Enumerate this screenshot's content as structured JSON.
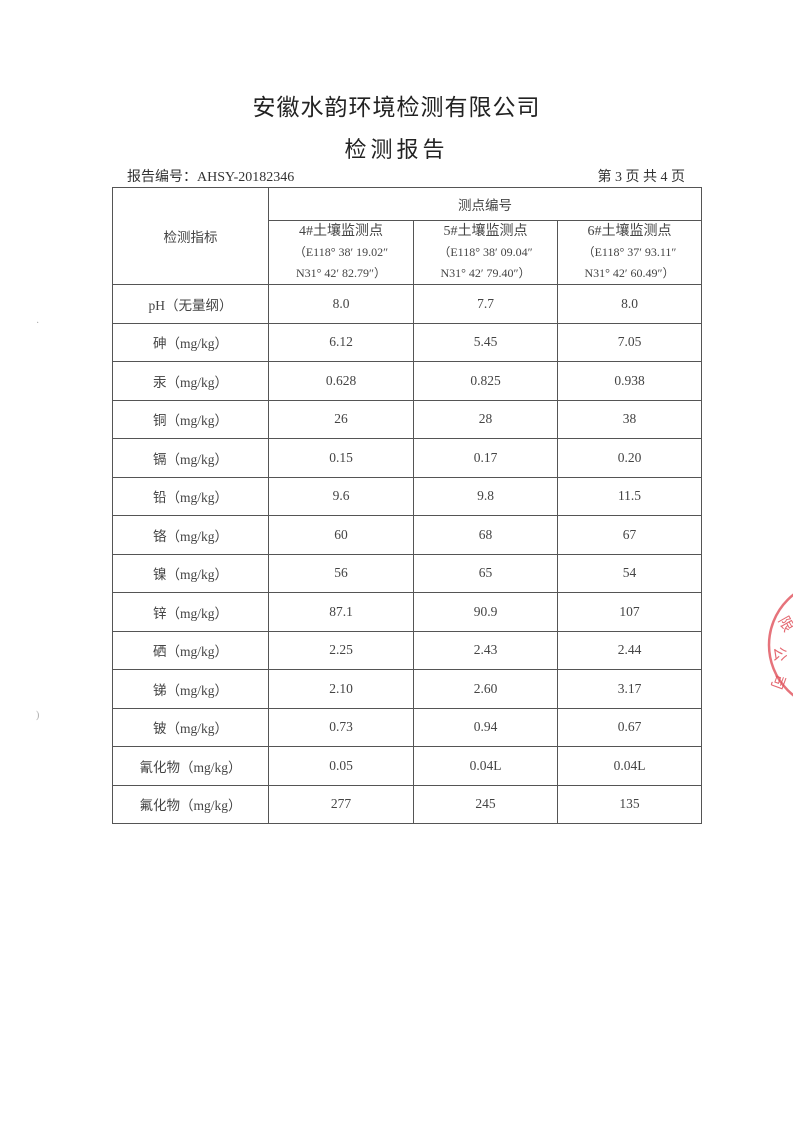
{
  "header": {
    "company": "安徽水韵环境检测有限公司",
    "title": "检测报告",
    "report_no": "报告编号：AHSY-20182346",
    "page": "第 3 页  共 4 页"
  },
  "table": {
    "indicator_header": "检测指标",
    "points_header": "测点编号",
    "points": [
      {
        "name": "4#土壤监测点",
        "coord1": "（E118° 38′ 19.02″",
        "coord2": "N31° 42′ 82.79″）"
      },
      {
        "name": "5#土壤监测点",
        "coord1": "（E118° 38′ 09.04″",
        "coord2": "N31° 42′ 79.40″）"
      },
      {
        "name": "6#土壤监测点",
        "coord1": "（E118° 37′ 93.11″",
        "coord2": "N31° 42′ 60.49″）"
      }
    ],
    "rows": [
      {
        "label": "pH（无量纲）",
        "values": [
          "8.0",
          "7.7",
          "8.0"
        ]
      },
      {
        "label": "砷（mg/kg）",
        "values": [
          "6.12",
          "5.45",
          "7.05"
        ]
      },
      {
        "label": "汞（mg/kg）",
        "values": [
          "0.628",
          "0.825",
          "0.938"
        ]
      },
      {
        "label": "铜（mg/kg）",
        "values": [
          "26",
          "28",
          "38"
        ]
      },
      {
        "label": "镉（mg/kg）",
        "values": [
          "0.15",
          "0.17",
          "0.20"
        ]
      },
      {
        "label": "铅（mg/kg）",
        "values": [
          "9.6",
          "9.8",
          "11.5"
        ]
      },
      {
        "label": "铬（mg/kg）",
        "values": [
          "60",
          "68",
          "67"
        ]
      },
      {
        "label": "镍（mg/kg）",
        "values": [
          "56",
          "65",
          "54"
        ]
      },
      {
        "label": "锌（mg/kg）",
        "values": [
          "87.1",
          "90.9",
          "107"
        ]
      },
      {
        "label": "硒（mg/kg）",
        "values": [
          "2.25",
          "2.43",
          "2.44"
        ]
      },
      {
        "label": "锑（mg/kg）",
        "values": [
          "2.10",
          "2.60",
          "3.17"
        ]
      },
      {
        "label": "铍（mg/kg）",
        "values": [
          "0.73",
          "0.94",
          "0.67"
        ]
      },
      {
        "label": "氰化物（mg/kg）",
        "values": [
          "0.05",
          "0.04L",
          "0.04L"
        ]
      },
      {
        "label": "氟化物（mg/kg）",
        "values": [
          "277",
          "245",
          "135"
        ]
      }
    ]
  },
  "seal": {
    "text": "限公司",
    "color": "#e0505a"
  }
}
